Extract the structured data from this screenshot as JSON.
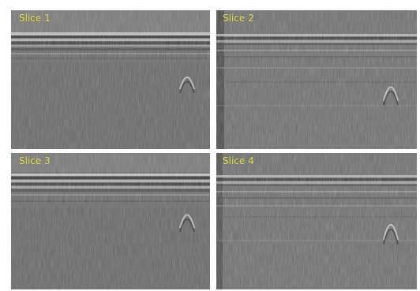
{
  "slices": [
    {
      "label": "Slice 1"
    },
    {
      "label": "Slice 2"
    },
    {
      "label": "Slice 3"
    },
    {
      "label": "Slice 4"
    }
  ],
  "colors": {
    "label": "#e8e24a",
    "background": "#6f6f6f"
  }
}
